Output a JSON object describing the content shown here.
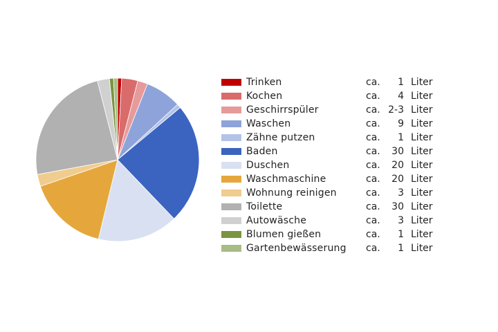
{
  "chart_data": {
    "type": "pie",
    "prefix": "ca.",
    "unit": "Liter",
    "slices": [
      {
        "label": "Trinken",
        "amount": "1",
        "value": 1,
        "color": "#c00000"
      },
      {
        "label": "Kochen",
        "amount": "4",
        "value": 4,
        "color": "#d96b6b"
      },
      {
        "label": "Geschirrspüler",
        "amount": "2-3",
        "value": 2.5,
        "color": "#e79a9a"
      },
      {
        "label": "Waschen",
        "amount": "9",
        "value": 9,
        "color": "#8ea3d9"
      },
      {
        "label": "Zähne putzen",
        "amount": "1",
        "value": 1,
        "color": "#b3c3e8"
      },
      {
        "label": "Baden",
        "amount": "30",
        "value": 30,
        "color": "#3b64c0"
      },
      {
        "label": "Duschen",
        "amount": "20",
        "value": 20,
        "color": "#d9e0f2"
      },
      {
        "label": "Waschmaschine",
        "amount": "20",
        "value": 20,
        "color": "#e5a73c"
      },
      {
        "label": "Wohnung reinigen",
        "amount": "3",
        "value": 3,
        "color": "#f0cc8e"
      },
      {
        "label": "Toilette",
        "amount": "30",
        "value": 30,
        "color": "#b1b1b1"
      },
      {
        "label": "Autowäsche",
        "amount": "3",
        "value": 3,
        "color": "#d0d0d0"
      },
      {
        "label": "Blumen gießen",
        "amount": "1",
        "value": 1,
        "color": "#7a9440"
      },
      {
        "label": "Gartenbewässerung",
        "amount": "1",
        "value": 1,
        "color": "#a8bc85"
      }
    ]
  }
}
